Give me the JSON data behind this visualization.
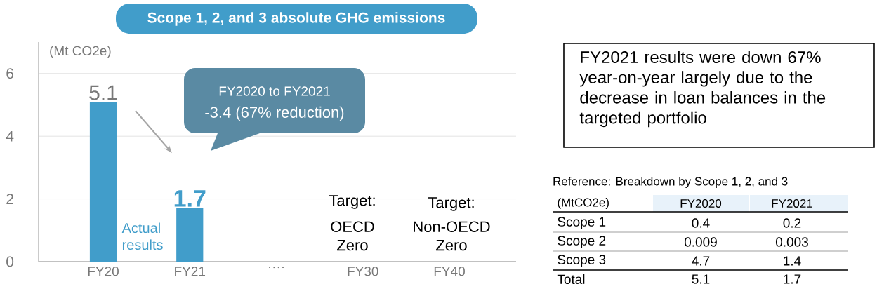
{
  "chart_data": {
    "type": "bar",
    "title": "Scope 1, 2, and 3 absolute GHG emissions",
    "ylabel": "(Mt CO2e)",
    "categories": [
      "FY20",
      "FY21",
      "····",
      "FY30",
      "FY40"
    ],
    "values": [
      5.1,
      1.7,
      null,
      null,
      null
    ],
    "color": "#419dca",
    "value_labels": [
      "5.1",
      "1.7",
      null,
      null,
      null
    ],
    "ylim": [
      0,
      7
    ],
    "yticks": [
      0,
      2,
      4,
      6
    ],
    "grid": "y",
    "annotations": [
      "FY2020 to FY2021",
      "-3.4 (67% reduction)",
      "Actual results",
      "Target:",
      "OECD Zero",
      "Target:",
      "Non-OECD Zero",
      "FY2021 results were down 67% year-on-year largely due to the decrease in loan balances in the targeted portfolio",
      "Reference: Breakdown by Scope 1, 2, and 3",
      "(MtCO2e)",
      "FY2020",
      "FY2021",
      "Scope 1",
      "0.4",
      "0.2",
      "Scope 2",
      "0.009",
      "0.003",
      "Scope 3",
      "4.7",
      "1.4",
      "Total",
      "5.1",
      "1.7"
    ]
  }
}
